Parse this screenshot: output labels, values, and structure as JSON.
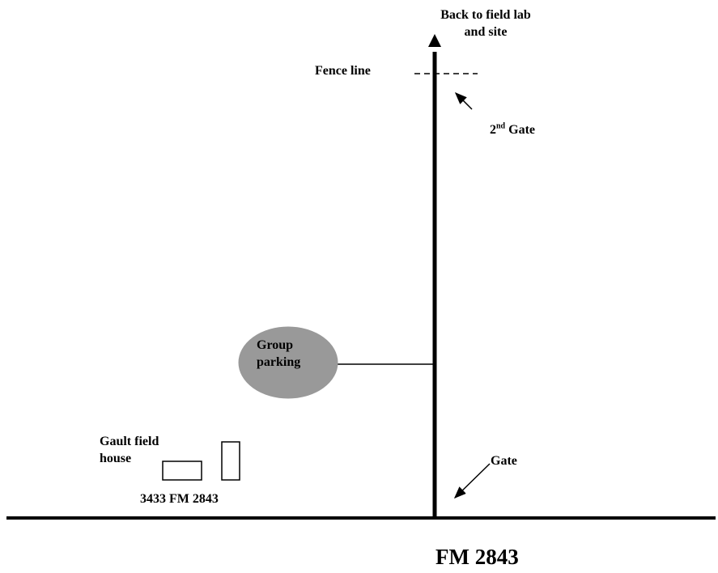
{
  "map": {
    "labels": {
      "back_to_field_lab_line1": "Back to field lab",
      "back_to_field_lab_line2": "and site",
      "fence_line": "Fence line",
      "second_gate_number": "2",
      "second_gate_suffix": "nd",
      "second_gate_word": "Gate",
      "group_parking_line1": "Group",
      "group_parking_line2": "parking",
      "gault_field_house_line1": "Gault field",
      "gault_field_house_line2": "house",
      "address": "3433 FM 2843",
      "gate": "Gate",
      "road_name": "FM 2843"
    },
    "colors": {
      "road": "#000000",
      "parking_fill": "#999999",
      "background": "#ffffff"
    },
    "icons": {
      "direction_arrow": "arrow-icon",
      "building": "building-outline"
    }
  }
}
